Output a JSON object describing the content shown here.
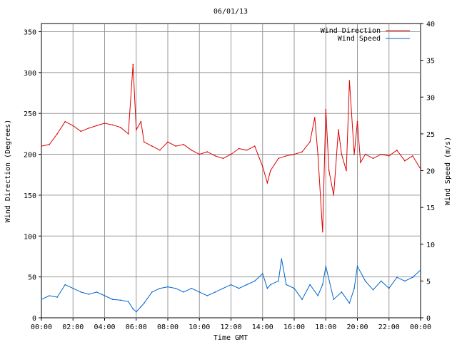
{
  "chart_data": {
    "type": "line",
    "title": "06/01/13",
    "xlabel": "Time GMT",
    "ylabel_left": "Wind Direction (Degrees)",
    "ylabel_right": "Wind Speed (m/s)",
    "x_ticks": [
      "00:00",
      "02:00",
      "04:00",
      "06:00",
      "08:00",
      "10:00",
      "12:00",
      "14:00",
      "16:00",
      "18:00",
      "20:00",
      "22:00",
      "00:00"
    ],
    "xlim_hours": [
      0,
      24
    ],
    "ylim_left": [
      0,
      360
    ],
    "y_ticks_left": [
      "0",
      "50",
      "100",
      "150",
      "200",
      "250",
      "300",
      "350"
    ],
    "ylim_right": [
      0,
      40
    ],
    "y_ticks_right": [
      "0",
      "5",
      "10",
      "15",
      "20",
      "25",
      "30",
      "35",
      "40"
    ],
    "grid": true,
    "legend_position": "top-right",
    "series": [
      {
        "name": "Wind Direction",
        "axis": "left",
        "color": "#dd0000",
        "x_hours": [
          0,
          0.5,
          1,
          1.5,
          2,
          2.5,
          3,
          3.5,
          4,
          4.5,
          5,
          5.5,
          5.8,
          6,
          6.3,
          6.5,
          7,
          7.5,
          8,
          8.5,
          9,
          9.5,
          10,
          10.5,
          11,
          11.5,
          12,
          12.5,
          13,
          13.5,
          14,
          14.3,
          14.5,
          15,
          15.5,
          16,
          16.5,
          17,
          17.3,
          17.5,
          17.8,
          18,
          18.2,
          18.5,
          18.8,
          19,
          19.3,
          19.5,
          19.8,
          20,
          20.2,
          20.5,
          21,
          21.5,
          22,
          22.5,
          23,
          23.5,
          24
        ],
        "values": [
          210,
          212,
          225,
          240,
          235,
          228,
          232,
          235,
          238,
          236,
          233,
          225,
          310,
          230,
          240,
          215,
          210,
          205,
          215,
          210,
          212,
          205,
          200,
          203,
          198,
          195,
          200,
          207,
          205,
          210,
          185,
          165,
          180,
          195,
          198,
          200,
          203,
          215,
          245,
          200,
          105,
          255,
          180,
          150,
          230,
          200,
          180,
          290,
          200,
          240,
          190,
          200,
          195,
          200,
          198,
          205,
          192,
          198,
          182
        ]
      },
      {
        "name": "Wind Speed",
        "axis": "right",
        "color": "#0066cc",
        "x_hours": [
          0,
          0.5,
          1,
          1.5,
          2,
          2.5,
          3,
          3.5,
          4,
          4.5,
          5,
          5.5,
          5.8,
          6,
          6.3,
          6.5,
          7,
          7.5,
          8,
          8.5,
          9,
          9.5,
          10,
          10.5,
          11,
          11.5,
          12,
          12.5,
          13,
          13.5,
          14,
          14.3,
          14.5,
          15,
          15.2,
          15.5,
          16,
          16.5,
          17,
          17.5,
          17.8,
          18,
          18.5,
          19,
          19.5,
          19.8,
          20,
          20.5,
          21,
          21.5,
          22,
          22.5,
          23,
          23.5,
          24
        ],
        "values": [
          2.5,
          3,
          2.8,
          4.5,
          4,
          3.5,
          3.2,
          3.5,
          3,
          2.5,
          2.4,
          2.2,
          1.2,
          0.8,
          1.5,
          2,
          3.5,
          4,
          4.2,
          4,
          3.5,
          4,
          3.5,
          3,
          3.5,
          4,
          4.5,
          4,
          4.5,
          5,
          6,
          4,
          4.5,
          5,
          8,
          4.5,
          4,
          2.5,
          4.5,
          3,
          4.5,
          7,
          2.5,
          3.5,
          2,
          4,
          7,
          5,
          3.8,
          5,
          4,
          5.5,
          5,
          5.5,
          6.5
        ]
      }
    ]
  }
}
